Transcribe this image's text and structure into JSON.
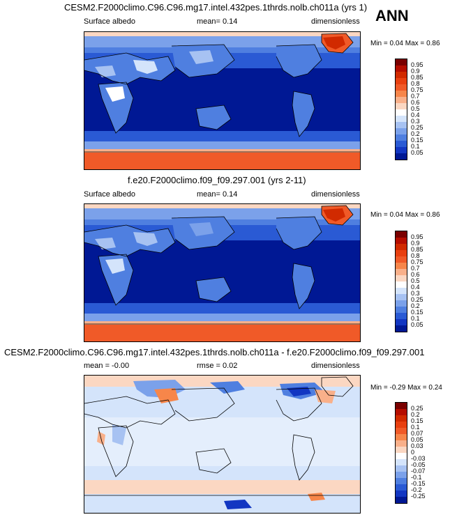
{
  "season": "ANN",
  "chart_data": [
    {
      "type": "heatmap",
      "title": "CESM2.F2000climo.C96.C96.mg17.intel.432pes.1thrds.nolb.ch011a (yrs 1)",
      "variable": "Surface albedo",
      "stat_text": "mean=  0.14",
      "units": "dimensionless",
      "min_label": "Min = ",
      "min": "0.04",
      "max_label": "Max = ",
      "max": "0.86",
      "levels": [
        "0.95",
        "0.9",
        "0.85",
        "0.8",
        "0.75",
        "0.7",
        "0.6",
        "0.5",
        "0.4",
        "0.3",
        "0.25",
        "0.2",
        "0.15",
        "0.1",
        "0.05"
      ],
      "colors": [
        "#7a0000",
        "#b50d00",
        "#d12a00",
        "#e84010",
        "#f05a28",
        "#f7864a",
        "#f9b08a",
        "#fbd7c2",
        "#ffffff",
        "#d4e4fb",
        "#a7c2f2",
        "#7ba1ea",
        "#4f7fe0",
        "#2a5ad4",
        "#1236c2",
        "#001894"
      ]
    },
    {
      "type": "heatmap",
      "title": "f.e20.F2000climo.f09_f09.297.001 (yrs 2-11)",
      "variable": "Surface albedo",
      "stat_text": "mean=  0.14",
      "units": "dimensionless",
      "min_label": "Min = ",
      "min": "0.04",
      "max_label": "Max = ",
      "max": "0.86",
      "levels": [
        "0.95",
        "0.9",
        "0.85",
        "0.8",
        "0.75",
        "0.7",
        "0.6",
        "0.5",
        "0.4",
        "0.3",
        "0.25",
        "0.2",
        "0.15",
        "0.1",
        "0.05"
      ],
      "colors": [
        "#7a0000",
        "#b50d00",
        "#d12a00",
        "#e84010",
        "#f05a28",
        "#f7864a",
        "#f9b08a",
        "#fbd7c2",
        "#ffffff",
        "#d4e4fb",
        "#a7c2f2",
        "#7ba1ea",
        "#4f7fe0",
        "#2a5ad4",
        "#1236c2",
        "#001894"
      ]
    },
    {
      "type": "heatmap",
      "title": "CESM2.F2000climo.C96.C96.mg17.intel.432pes.1thrds.nolb.ch011a - f.e20.F2000climo.f09_f09.297.001",
      "variable": "mean =  -0.00",
      "stat_text": "rmse =  0.02",
      "units": "dimensionless",
      "min_label": "Min = ",
      "min": "-0.29",
      "max_label": "Max = ",
      "max": "0.24",
      "levels": [
        "0.25",
        "0.2",
        "0.15",
        "0.1",
        "0.07",
        "0.05",
        "0.03",
        "0",
        "-0.03",
        "-0.05",
        "-0.07",
        "-0.1",
        "-0.15",
        "-0.2",
        "-0.25"
      ],
      "colors": [
        "#7a0000",
        "#b50d00",
        "#d12a00",
        "#e84010",
        "#f05a28",
        "#f7864a",
        "#f9b08a",
        "#fbd7c2",
        "#ffffff",
        "#d4e4fb",
        "#a7c2f2",
        "#7ba1ea",
        "#4f7fe0",
        "#2a5ad4",
        "#1236c2",
        "#001894"
      ]
    }
  ]
}
